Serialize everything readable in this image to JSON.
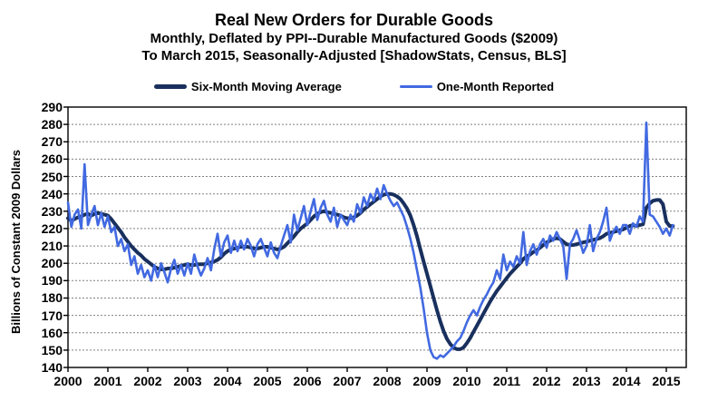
{
  "header": {
    "title": "Real New Orders for Durable Goods",
    "subtitle1": "Monthly, Deflated by PPI--Durable Manufactured Goods ($2009)",
    "subtitle2": "To March 2015, Seasonally-Adjusted [ShadowStats, Census, BLS]"
  },
  "chart_data": {
    "type": "line",
    "title": "Real New Orders for Durable Goods",
    "xlabel": "",
    "ylabel": "Billions  of Constant 2009 Dollars",
    "ylim": [
      140,
      290
    ],
    "ytick_step": 10,
    "yticks": [
      140,
      150,
      160,
      170,
      180,
      190,
      200,
      210,
      220,
      230,
      240,
      250,
      260,
      270,
      280,
      290
    ],
    "xticks": [
      2000,
      2001,
      2002,
      2003,
      2004,
      2005,
      2006,
      2007,
      2008,
      2009,
      2010,
      2011,
      2012,
      2013,
      2014,
      2015
    ],
    "x_unit": "month",
    "x_start": "2000-01",
    "x_end": "2015-03",
    "grid": "horizontal-dashed",
    "grid_color": "#808080",
    "legend_position": "top",
    "series": [
      {
        "name": "Six-Month Moving Average",
        "color": "#19305E",
        "width": 4,
        "data_name": "six-month-moving-average-line",
        "values": [
          226,
          224.5,
          225.5,
          226.5,
          227,
          228,
          228.5,
          227.5,
          228.5,
          229,
          228.5,
          228,
          227.5,
          225.5,
          223,
          220.5,
          218,
          215,
          212.5,
          210,
          208,
          206,
          204.5,
          202.5,
          201,
          199.5,
          198,
          197,
          196.5,
          196.5,
          197,
          197,
          197.5,
          198,
          198.5,
          199,
          199.5,
          199,
          199,
          199.5,
          199.5,
          199.5,
          200,
          200.5,
          201,
          202,
          203.5,
          205.5,
          207,
          208,
          208.5,
          209,
          209.5,
          209.5,
          209.5,
          209,
          208.5,
          208.5,
          209,
          209.5,
          209.5,
          209,
          208.5,
          208,
          208.5,
          209.5,
          211.5,
          213.5,
          215.5,
          218,
          220,
          221.5,
          223,
          225,
          227,
          228.5,
          229.5,
          230,
          229.5,
          229,
          228.5,
          228,
          227.5,
          226.5,
          226,
          226,
          226.5,
          227.5,
          229,
          231,
          232.5,
          234,
          235.5,
          237,
          238.5,
          239.5,
          240,
          240,
          239.5,
          238.5,
          237,
          234.5,
          231.5,
          227.5,
          222,
          215.5,
          208,
          201,
          194,
          187,
          180,
          173,
          166.5,
          161,
          156.5,
          153.5,
          151.5,
          150.5,
          150.5,
          151.5,
          154,
          157,
          160.5,
          164,
          167.5,
          171,
          174.5,
          178,
          181,
          184,
          186.5,
          189,
          191.5,
          194,
          196,
          198,
          200,
          202.5,
          204,
          205,
          206.5,
          207.5,
          209,
          210.5,
          212,
          213,
          214,
          214.5,
          214,
          212.5,
          211,
          210.5,
          210.5,
          211,
          211.5,
          212,
          212.5,
          213,
          213.5,
          214,
          214.5,
          215.5,
          217,
          217.5,
          218,
          218.5,
          219,
          219.5,
          220.5,
          221.5,
          222,
          221.5,
          222,
          222.5,
          232,
          234.5,
          236,
          236.5,
          236.5,
          234,
          224,
          221.5,
          221.5
        ]
      },
      {
        "name": "One-Month Reported",
        "color": "#4169E1",
        "width": 2.6,
        "data_name": "one-month-reported-line",
        "values": [
          235,
          221,
          228,
          231,
          220,
          257,
          222,
          228,
          233,
          222,
          229,
          221,
          227,
          218,
          221,
          210,
          214,
          207,
          211,
          199,
          204,
          194,
          199,
          192,
          196,
          190,
          199,
          192,
          200,
          195,
          189,
          197,
          202,
          194,
          199,
          193,
          200,
          194,
          205,
          198,
          193,
          197,
          203,
          196,
          208,
          217,
          204,
          212,
          216,
          206,
          213,
          207,
          213,
          208,
          214,
          210,
          204,
          211,
          214,
          209,
          204,
          212,
          206,
          203,
          210,
          216,
          222,
          212,
          228,
          219,
          226,
          233,
          222,
          230,
          237,
          225,
          232,
          236,
          228,
          224,
          232,
          221,
          228,
          225,
          222,
          228,
          224,
          234,
          229,
          238,
          233,
          240,
          236,
          243,
          237,
          245,
          240,
          236,
          233,
          235,
          231,
          227,
          221,
          214,
          206,
          196,
          186,
          174,
          160,
          150,
          146,
          145,
          147,
          146,
          148,
          150,
          152,
          155,
          157,
          161,
          166,
          170,
          173,
          170,
          175,
          179,
          182,
          186,
          189,
          196,
          191,
          205,
          196,
          201,
          198,
          204,
          200,
          218,
          199,
          207,
          211,
          205,
          211,
          214,
          209,
          216,
          213,
          218,
          214,
          210,
          191,
          211,
          214,
          219,
          213,
          206,
          210,
          222,
          207,
          214,
          218,
          224,
          232,
          213,
          218,
          221,
          217,
          222,
          222,
          217,
          223,
          221,
          227,
          224,
          281,
          228,
          227,
          224,
          221,
          217,
          220,
          216,
          222
        ]
      }
    ]
  }
}
